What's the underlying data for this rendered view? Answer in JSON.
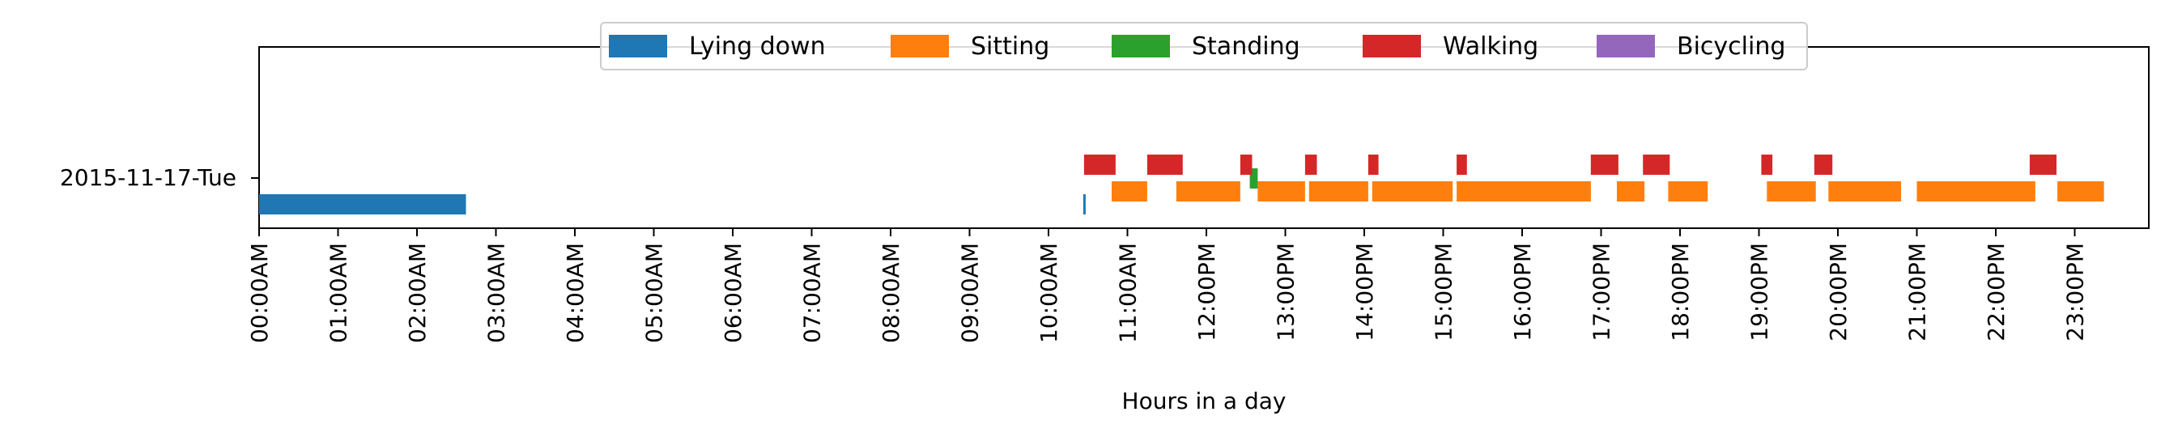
{
  "chart_data": {
    "type": "timeline",
    "xlabel": "Hours in a day",
    "ylabel": "",
    "xlim": [
      0,
      24
    ],
    "x_tick_labels": [
      "00:00AM",
      "01:00AM",
      "02:00AM",
      "03:00AM",
      "04:00AM",
      "05:00AM",
      "06:00AM",
      "07:00AM",
      "08:00AM",
      "09:00AM",
      "10:00AM",
      "11:00AM",
      "12:00PM",
      "13:00PM",
      "14:00PM",
      "15:00PM",
      "16:00PM",
      "17:00PM",
      "18:00PM",
      "19:00PM",
      "20:00PM",
      "21:00PM",
      "22:00PM",
      "23:00PM"
    ],
    "y_tick_label": "2015-11-17-Tue",
    "legend_position": "top-center",
    "series": [
      {
        "name": "Lying down",
        "color": "#1f77b4",
        "intervals": [
          [
            0.0,
            2.62
          ],
          [
            10.44,
            10.47
          ]
        ]
      },
      {
        "name": "Sitting",
        "color": "#ff7f0e",
        "intervals": [
          [
            10.8,
            11.25
          ],
          [
            11.62,
            12.43
          ],
          [
            12.65,
            13.25
          ],
          [
            13.3,
            14.05
          ],
          [
            14.1,
            15.12
          ],
          [
            15.17,
            16.87
          ],
          [
            17.2,
            17.55
          ],
          [
            17.85,
            18.35
          ],
          [
            19.1,
            19.72
          ],
          [
            19.88,
            20.8
          ],
          [
            21.0,
            22.5
          ],
          [
            22.78,
            23.37
          ]
        ]
      },
      {
        "name": "Standing",
        "color": "#2ca02c",
        "intervals": [
          [
            12.55,
            12.65
          ]
        ]
      },
      {
        "name": "Walking",
        "color": "#d62728",
        "intervals": [
          [
            10.45,
            10.85
          ],
          [
            11.25,
            11.7
          ],
          [
            12.43,
            12.58
          ],
          [
            13.25,
            13.4
          ],
          [
            14.05,
            14.18
          ],
          [
            15.17,
            15.3
          ],
          [
            16.87,
            17.22
          ],
          [
            17.53,
            17.87
          ],
          [
            19.03,
            19.17
          ],
          [
            19.7,
            19.93
          ],
          [
            22.43,
            22.77
          ]
        ]
      },
      {
        "name": "Bicycling",
        "color": "#9467bd",
        "intervals": []
      }
    ]
  }
}
